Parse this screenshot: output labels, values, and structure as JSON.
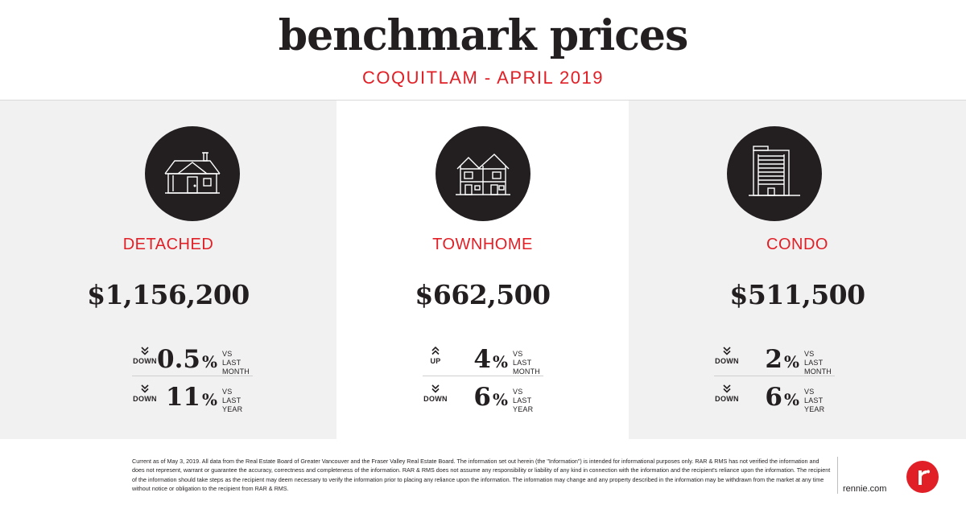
{
  "header": {
    "title": "benchmark prices",
    "subtitle": "COQUITLAM - APRIL 2019"
  },
  "colors": {
    "accent": "#e01f26",
    "text": "#231f20",
    "panel_grey": "#f1f1f1"
  },
  "panels": [
    {
      "icon": "house-icon",
      "type": "DETACHED",
      "price": "$1,156,200",
      "stats": [
        {
          "direction": "DOWN",
          "arrow": "chevron-down-icon",
          "value": "0.5",
          "unit": "%",
          "vs_line1": "VS LAST",
          "vs_line2": "MONTH"
        },
        {
          "direction": "DOWN",
          "arrow": "chevron-down-icon",
          "value": "11",
          "unit": "%",
          "vs_line1": "VS LAST",
          "vs_line2": "YEAR"
        }
      ]
    },
    {
      "icon": "townhome-icon",
      "type": "TOWNHOME",
      "price": "$662,500",
      "stats": [
        {
          "direction": "UP",
          "arrow": "chevron-up-icon",
          "value": "4",
          "unit": "%",
          "vs_line1": "VS LAST",
          "vs_line2": "MONTH"
        },
        {
          "direction": "DOWN",
          "arrow": "chevron-down-icon",
          "value": "6",
          "unit": "%",
          "vs_line1": "VS LAST",
          "vs_line2": "YEAR"
        }
      ]
    },
    {
      "icon": "condo-building-icon",
      "type": "CONDO",
      "price": "$511,500",
      "stats": [
        {
          "direction": "DOWN",
          "arrow": "chevron-down-icon",
          "value": "2",
          "unit": "%",
          "vs_line1": "VS LAST",
          "vs_line2": "MONTH"
        },
        {
          "direction": "DOWN",
          "arrow": "chevron-down-icon",
          "value": "6",
          "unit": "%",
          "vs_line1": "VS LAST",
          "vs_line2": "YEAR"
        }
      ]
    }
  ],
  "footer": {
    "disclaimer": "Current as of May 3, 2019. All data from the Real Estate Board of Greater Vancouver and the Fraser Valley Real Estate Board. The information set out herein (the \"Information\") is intended for informational purposes only. RAR & RMS has not verified the information and does not represent, warrant or guarantee the accuracy, correctness and completeness of the information. RAR & RMS does not assume any responsibility or liability of any kind in connection with the information and the recipient's reliance upon the information. The recipient of the information should take steps as the recipient may deem necessary to verify the information prior to placing any reliance upon the information. The information may change and any property described in the information may be withdrawn from the market at any time without notice or obligation to the recipient from RAR & RMS.",
    "site": "rennie.com",
    "logo": "rennie-logo-icon"
  }
}
